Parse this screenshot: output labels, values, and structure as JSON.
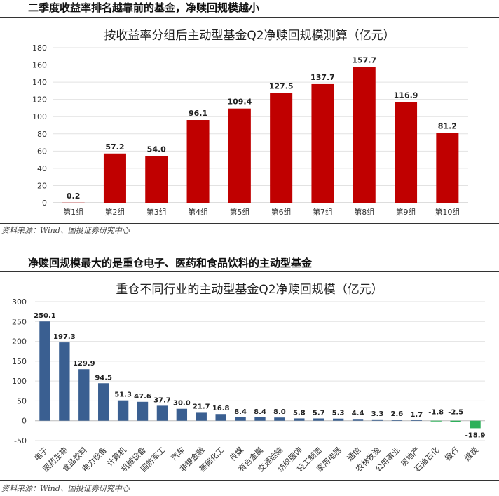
{
  "section1": {
    "heading": "二季度收益率排名越靠前的基金，净赎回规模越小",
    "source": "资料来源：Wind、国投证券研究中心"
  },
  "section2": {
    "heading": "净赎回规模最大的是重仓电子、医药和食品饮料的主动型基金",
    "source": "资料来源：Wind、国投证券研究中心"
  },
  "colors": {
    "bar1": "#c00000",
    "bar2_pos": "#3a5f91",
    "bar2_neg": "#2eb05a"
  },
  "chart_data": [
    {
      "type": "bar",
      "title": "按收益率分组后主动型基金Q2净赎回规模测算（亿元）",
      "categories": [
        "第1组",
        "第2组",
        "第3组",
        "第4组",
        "第5组",
        "第6组",
        "第7组",
        "第8组",
        "第9组",
        "第10组"
      ],
      "values": [
        0.2,
        57.2,
        54.0,
        96.1,
        109.4,
        127.5,
        137.7,
        157.7,
        116.9,
        81.2
      ],
      "labels": [
        "0.2",
        "57.2",
        "54.0",
        "96.1",
        "109.4",
        "127.5",
        "137.7",
        "157.7",
        "116.9",
        "81.2"
      ],
      "ylim": [
        0,
        180
      ],
      "yticks": [
        "0",
        "20",
        "40",
        "60",
        "80",
        "100",
        "120",
        "140",
        "160",
        "180"
      ],
      "grid": true
    },
    {
      "type": "bar",
      "title": "重仓不同行业的主动型基金Q2净赎回规模（亿元）",
      "categories": [
        "电子",
        "医药生物",
        "食品饮料",
        "电力设备",
        "计算机",
        "机械设备",
        "国防军工",
        "汽车",
        "非银金融",
        "基础化工",
        "传媒",
        "有色金属",
        "交通运输",
        "纺织服饰",
        "轻工制造",
        "家用电器",
        "通信",
        "农林牧渔",
        "公用事业",
        "房地产",
        "石油石化",
        "银行",
        "煤炭"
      ],
      "values": [
        250.1,
        197.3,
        129.9,
        94.5,
        51.3,
        47.6,
        37.7,
        30.0,
        21.7,
        16.8,
        8.4,
        8.4,
        8.0,
        5.8,
        5.7,
        5.3,
        4.4,
        3.3,
        2.6,
        1.7,
        -1.8,
        -2.5,
        -18.9
      ],
      "labels": [
        "250.1",
        "197.3",
        "129.9",
        "94.5",
        "51.3",
        "47.6",
        "37.7",
        "30.0",
        "21.7",
        "16.8",
        "8.4",
        "8.4",
        "8.0",
        "5.8",
        "5.7",
        "5.3",
        "4.4",
        "3.3",
        "2.6",
        "1.7",
        "-1.8",
        "-2.5",
        "-18.9"
      ],
      "ylim": [
        -50,
        300
      ],
      "yticks": [
        "-50",
        "0",
        "50",
        "100",
        "150",
        "200",
        "250",
        "300"
      ],
      "grid": true
    }
  ]
}
